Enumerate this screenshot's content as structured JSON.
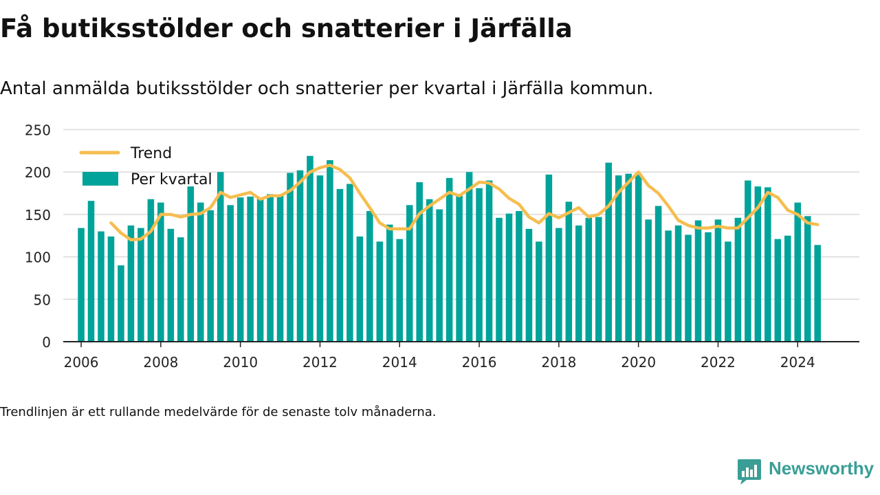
{
  "title": "Få butiksstölder och snatterier i Järfälla",
  "subtitle": "Antal anmälda butiksstölder och snatterier per kvartal i Järfälla kommun.",
  "note": "Trendlinjen är ett rullande medelvärde för de senaste tolv månaderna.",
  "brand": "Newsworthy",
  "colors": {
    "bar": "#00a39a",
    "trend": "#f6bd4f",
    "grid": "#d9d9d9",
    "axis": "#222222",
    "brand": "#3a9e96"
  },
  "chart_data": {
    "type": "bar",
    "title": "Få butiksstölder och snatterier i Järfälla",
    "subtitle": "Antal anmälda butiksstölder och snatterier per kvartal i Järfälla kommun.",
    "xlabel": "",
    "ylabel": "",
    "ylim": [
      0,
      250
    ],
    "yticks": [
      0,
      50,
      100,
      150,
      200,
      250
    ],
    "xticks": [
      2006,
      2008,
      2010,
      2012,
      2014,
      2016,
      2018,
      2020,
      2022,
      2024
    ],
    "xlim": [
      2005.55,
      2025.55
    ],
    "grid": true,
    "legend_position": "top-left",
    "quarters": [
      "2006 Q1",
      "2006 Q2",
      "2006 Q3",
      "2006 Q4",
      "2007 Q1",
      "2007 Q2",
      "2007 Q3",
      "2007 Q4",
      "2008 Q1",
      "2008 Q2",
      "2008 Q3",
      "2008 Q4",
      "2009 Q1",
      "2009 Q2",
      "2009 Q3",
      "2009 Q4",
      "2010 Q1",
      "2010 Q2",
      "2010 Q3",
      "2010 Q4",
      "2011 Q1",
      "2011 Q2",
      "2011 Q3",
      "2011 Q4",
      "2012 Q1",
      "2012 Q2",
      "2012 Q3",
      "2012 Q4",
      "2013 Q1",
      "2013 Q2",
      "2013 Q3",
      "2013 Q4",
      "2014 Q1",
      "2014 Q2",
      "2014 Q3",
      "2014 Q4",
      "2015 Q1",
      "2015 Q2",
      "2015 Q3",
      "2015 Q4",
      "2016 Q1",
      "2016 Q2",
      "2016 Q3",
      "2016 Q4",
      "2017 Q1",
      "2017 Q2",
      "2017 Q3",
      "2017 Q4",
      "2018 Q1",
      "2018 Q2",
      "2018 Q3",
      "2018 Q4",
      "2019 Q1",
      "2019 Q2",
      "2019 Q3",
      "2019 Q4",
      "2020 Q1",
      "2020 Q2",
      "2020 Q3",
      "2020 Q4",
      "2021 Q1",
      "2021 Q2",
      "2021 Q3",
      "2021 Q4",
      "2022 Q1",
      "2022 Q2",
      "2022 Q3",
      "2022 Q4",
      "2023 Q1",
      "2023 Q2",
      "2023 Q3",
      "2023 Q4",
      "2024 Q1",
      "2024 Q2",
      "2024 Q3"
    ],
    "series": [
      {
        "name": "Per kvartal",
        "type": "bar",
        "values": [
          134,
          166,
          130,
          124,
          90,
          137,
          134,
          168,
          164,
          133,
          123,
          183,
          164,
          155,
          200,
          161,
          170,
          171,
          169,
          174,
          173,
          199,
          202,
          219,
          196,
          214,
          180,
          186,
          124,
          154,
          118,
          138,
          121,
          161,
          188,
          168,
          156,
          193,
          172,
          200,
          181,
          190,
          146,
          151,
          154,
          133,
          118,
          197,
          134,
          165,
          137,
          146,
          147,
          211,
          196,
          198,
          197,
          144,
          160,
          131,
          137,
          126,
          143,
          129,
          144,
          118,
          146,
          190,
          183,
          182,
          121,
          125,
          164,
          148,
          114
        ]
      },
      {
        "name": "Trend",
        "type": "line",
        "x": [
          2006.75,
          2007.0,
          2007.25,
          2007.5,
          2007.75,
          2008.0,
          2008.25,
          2008.5,
          2008.75,
          2009.0,
          2009.25,
          2009.5,
          2009.75,
          2010.0,
          2010.25,
          2010.5,
          2010.75,
          2011.0,
          2011.25,
          2011.5,
          2011.75,
          2012.0,
          2012.25,
          2012.5,
          2012.75,
          2013.0,
          2013.25,
          2013.5,
          2013.75,
          2014.0,
          2014.25,
          2014.5,
          2014.75,
          2015.0,
          2015.25,
          2015.5,
          2015.75,
          2016.0,
          2016.25,
          2016.5,
          2016.75,
          2017.0,
          2017.25,
          2017.5,
          2017.75,
          2018.0,
          2018.25,
          2018.5,
          2018.75,
          2019.0,
          2019.25,
          2019.5,
          2019.75,
          2020.0,
          2020.25,
          2020.5,
          2020.75,
          2021.0,
          2021.25,
          2021.5,
          2021.75,
          2022.0,
          2022.25,
          2022.5,
          2022.75,
          2023.0,
          2023.25,
          2023.5,
          2023.75,
          2024.0,
          2024.25,
          2024.5
        ],
        "values": [
          140,
          128,
          120,
          121,
          130,
          150,
          150,
          147,
          150,
          151,
          158,
          176,
          170,
          173,
          176,
          168,
          172,
          172,
          178,
          188,
          200,
          205,
          208,
          203,
          193,
          175,
          158,
          140,
          133,
          133,
          133,
          151,
          160,
          168,
          176,
          172,
          180,
          188,
          187,
          180,
          169,
          162,
          147,
          140,
          151,
          146,
          152,
          158,
          147,
          150,
          160,
          176,
          188,
          200,
          184,
          175,
          160,
          143,
          137,
          134,
          134,
          136,
          134,
          134,
          146,
          158,
          176,
          170,
          155,
          150,
          140,
          138
        ]
      }
    ]
  }
}
